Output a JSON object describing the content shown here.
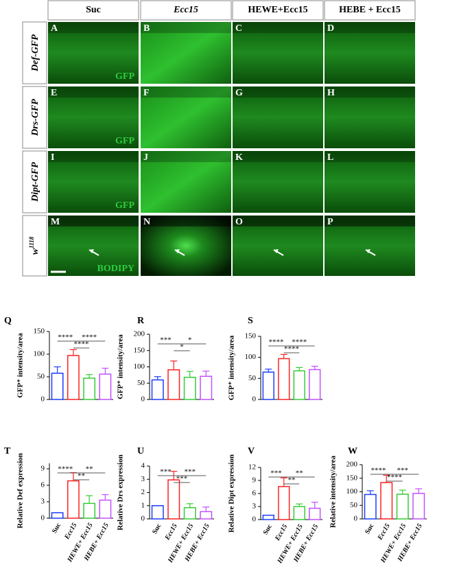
{
  "figure": {
    "columns": [
      "Suc",
      "Ecc15",
      "HEWE+Ecc15",
      "HEBE + Ecc15"
    ],
    "rows": [
      {
        "label": "Def-GFP",
        "stain": "GFP",
        "panels": [
          "A",
          "B",
          "C",
          "D"
        ]
      },
      {
        "label": "Drs-GFP",
        "stain": "GFP",
        "panels": [
          "E",
          "F",
          "G",
          "H"
        ]
      },
      {
        "label": "Dipt-GFP",
        "stain": "GFP",
        "panels": [
          "I",
          "J",
          "K",
          "L"
        ]
      },
      {
        "label": "w",
        "label_sup": "1118",
        "stain": "BODIPY",
        "panels": [
          "M",
          "N",
          "O",
          "P"
        ]
      }
    ]
  },
  "chart_data": [
    {
      "type": "bar",
      "panel": "Q",
      "ylabel": "GFP⁺ intensity/area",
      "ylim": [
        0,
        150
      ],
      "yticks": [
        0,
        50,
        100,
        150
      ],
      "values": [
        58,
        97,
        47,
        56
      ],
      "errors": [
        14,
        13,
        8,
        13
      ],
      "colors": [
        "#1a3cff",
        "#ff2020",
        "#33cc33",
        "#c050ff"
      ],
      "significance": [
        {
          "from": 0,
          "to": 1,
          "label": "****"
        },
        {
          "from": 1,
          "to": 2,
          "label": "****"
        },
        {
          "from": 1,
          "to": 3,
          "label": "****"
        }
      ]
    },
    {
      "type": "bar",
      "panel": "R",
      "ylabel": "GFP⁺ intensity/area",
      "ylim": [
        0,
        200
      ],
      "yticks": [
        0,
        50,
        100,
        150,
        200
      ],
      "values": [
        60,
        91,
        68,
        71
      ],
      "errors": [
        10,
        27,
        18,
        16
      ],
      "colors": [
        "#1a3cff",
        "#ff2020",
        "#33cc33",
        "#c050ff"
      ],
      "significance": [
        {
          "from": 0,
          "to": 1,
          "label": "***"
        },
        {
          "from": 1,
          "to": 2,
          "label": "*"
        },
        {
          "from": 1,
          "to": 3,
          "label": "*"
        }
      ]
    },
    {
      "type": "bar",
      "panel": "S",
      "ylabel": "GFP⁺ intensity/area",
      "ylim": [
        0,
        150
      ],
      "yticks": [
        0,
        50,
        100,
        150
      ],
      "values": [
        65,
        97,
        68,
        71
      ],
      "errors": [
        7,
        10,
        8,
        8
      ],
      "colors": [
        "#1a3cff",
        "#ff2020",
        "#33cc33",
        "#c050ff"
      ],
      "significance": [
        {
          "from": 0,
          "to": 1,
          "label": "****"
        },
        {
          "from": 1,
          "to": 2,
          "label": "****"
        },
        {
          "from": 1,
          "to": 3,
          "label": "****"
        }
      ]
    },
    {
      "type": "bar",
      "panel": "T",
      "ylabel": "Relative Def expression",
      "ylim": [
        0,
        10
      ],
      "yticks": [
        0,
        3,
        6,
        9
      ],
      "categories": [
        "Suc",
        "Ecc15",
        "HEWE+ Ecc15",
        "HEBE+ Ecc15"
      ],
      "values": [
        1,
        6.8,
        2.7,
        3.3
      ],
      "errors": [
        0,
        1.5,
        1.4,
        1.0
      ],
      "colors": [
        "#1a3cff",
        "#ff2020",
        "#33cc33",
        "#c050ff"
      ],
      "significance": [
        {
          "from": 0,
          "to": 1,
          "label": "****"
        },
        {
          "from": 1,
          "to": 2,
          "label": "**"
        },
        {
          "from": 1,
          "to": 3,
          "label": "**"
        }
      ]
    },
    {
      "type": "bar",
      "panel": "U",
      "ylabel": "Relative Drs expression",
      "ylim": [
        0,
        4
      ],
      "yticks": [
        0,
        1,
        2,
        3,
        4
      ],
      "categories": [
        "Suc",
        "Ecc15",
        "HEWE+ Ecc15",
        "HEBE+ Ecc15"
      ],
      "values": [
        1,
        2.95,
        0.85,
        0.55
      ],
      "errors": [
        0,
        0.65,
        0.3,
        0.35
      ],
      "colors": [
        "#1a3cff",
        "#ff2020",
        "#33cc33",
        "#c050ff"
      ],
      "significance": [
        {
          "from": 0,
          "to": 1,
          "label": "***"
        },
        {
          "from": 1,
          "to": 2,
          "label": "***"
        },
        {
          "from": 1,
          "to": 3,
          "label": "***"
        }
      ]
    },
    {
      "type": "bar",
      "panel": "V",
      "ylabel": "Relative Dipt expression",
      "ylim": [
        0,
        12
      ],
      "yticks": [
        0,
        3,
        6,
        9,
        12
      ],
      "categories": [
        "Suc",
        "Ecc15",
        "HEWE+ Ecc15",
        "HEBE+ Ecc15"
      ],
      "values": [
        1,
        7.6,
        3.0,
        2.6
      ],
      "errors": [
        0,
        2.0,
        0.6,
        1.4
      ],
      "colors": [
        "#1a3cff",
        "#ff2020",
        "#33cc33",
        "#c050ff"
      ],
      "significance": [
        {
          "from": 0,
          "to": 1,
          "label": "***"
        },
        {
          "from": 1,
          "to": 2,
          "label": "**"
        },
        {
          "from": 1,
          "to": 3,
          "label": "**"
        }
      ]
    },
    {
      "type": "bar",
      "panel": "W",
      "ylabel": "Relative intensity/area",
      "ylim": [
        0,
        200
      ],
      "yticks": [
        0,
        50,
        100,
        150,
        200
      ],
      "categories": [
        "Suc",
        "Ecc15",
        "HEWE+ Ecc15",
        "HEBE+ Ecc15"
      ],
      "values": [
        90,
        134,
        91,
        94
      ],
      "errors": [
        14,
        27,
        15,
        17
      ],
      "colors": [
        "#1a3cff",
        "#ff2020",
        "#33cc33",
        "#c050ff"
      ],
      "significance": [
        {
          "from": 0,
          "to": 1,
          "label": "****"
        },
        {
          "from": 1,
          "to": 2,
          "label": "****"
        },
        {
          "from": 1,
          "to": 3,
          "label": "***"
        }
      ]
    }
  ]
}
